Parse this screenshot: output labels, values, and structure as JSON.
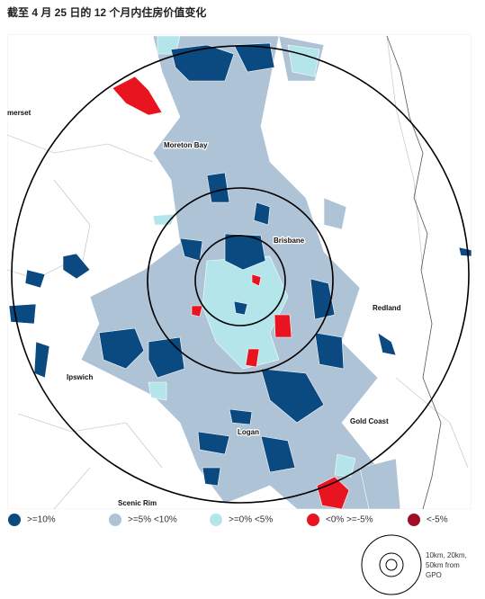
{
  "title": "截至 4 月 25 日的 12 个月内住房价值变化",
  "places": [
    {
      "name": "merset"
    },
    {
      "name": "Moreton Bay"
    },
    {
      "name": "Brisbane"
    },
    {
      "name": "Redland"
    },
    {
      "name": "Ipswich"
    },
    {
      "name": "Gold Coast"
    },
    {
      "name": "Logan"
    },
    {
      "name": "Scenic Rim"
    }
  ],
  "legend": [
    {
      "label": ">=10%",
      "color": "#0b4a80"
    },
    {
      "label": ">=5% <10%",
      "color": "#aec3d6"
    },
    {
      "label": ">=0% <5%",
      "color": "#b3e5ea"
    },
    {
      "label": "<0% >=-5%",
      "color": "#e8141f"
    },
    {
      "label": "<-5%",
      "color": "#a20d26"
    }
  ],
  "rings_note": [
    "10km, 20km,",
    "50km from",
    "GPO"
  ]
}
